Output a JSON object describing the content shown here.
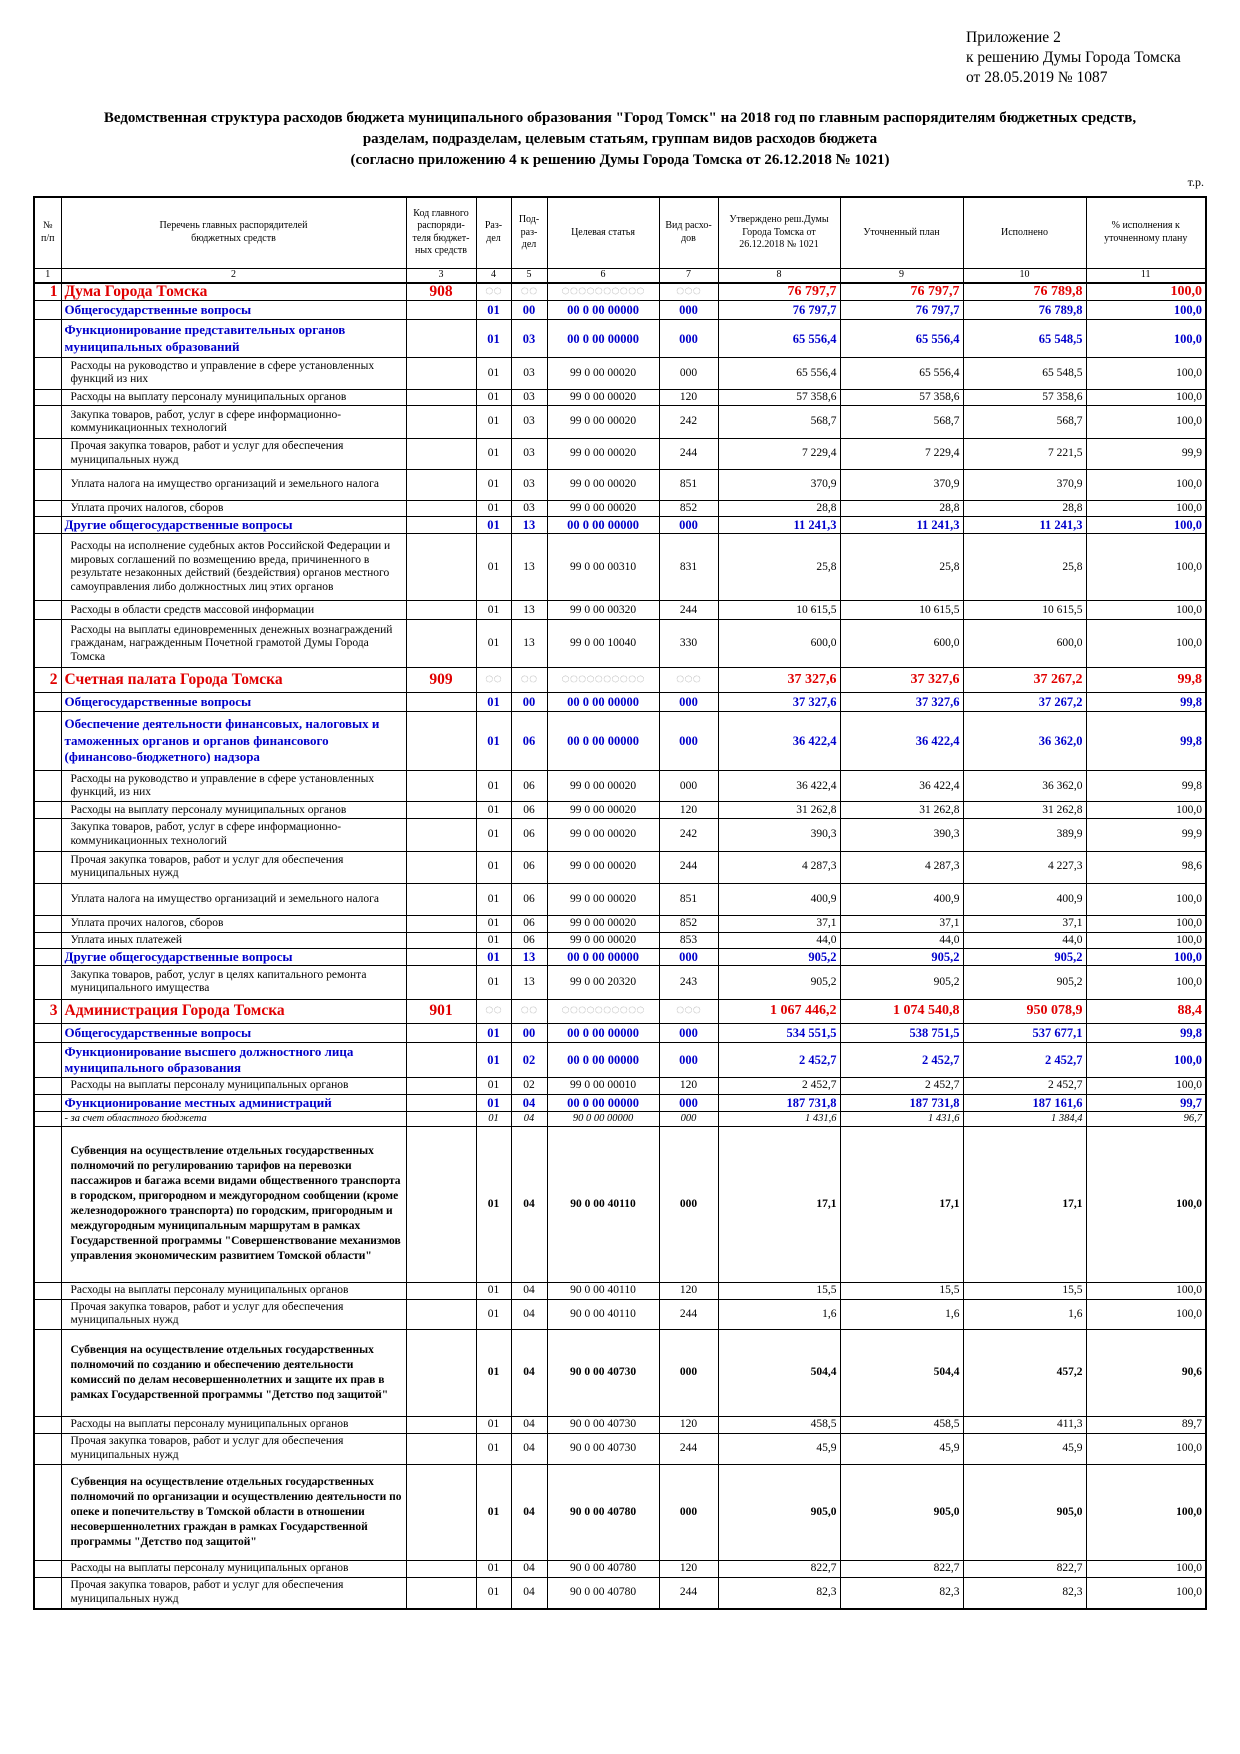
{
  "header": {
    "lines": [
      "Приложение 2",
      "к решению Думы Города Томска",
      "от 28.05.2019 № 1087"
    ]
  },
  "title": {
    "lines": [
      "Ведомственная структура расходов бюджета муниципального образования \"Город Томск\" на 2018 год по главным распорядителям бюджетных средств,",
      "разделам, подразделам, целевым статьям, группам видов расходов бюджета",
      "(согласно приложению 4 к решению Думы Города Томска от 26.12.2018 № 1021)"
    ]
  },
  "unit": "т.р.",
  "table": {
    "columns": [
      "№\nп/п",
      "Перечень главных распорядителей\nбюджетных средств",
      "Код главного\nраспоряди-\nтеля бюджет-\nных средств",
      "Раз-\nдел",
      "Под-\nраз-\nдел",
      "Целевая статья",
      "Вид расхо-\nдов",
      "Утверждено реш.Думы\nГорода Томска от\n26.12.2018 № 1021",
      "Уточненный план",
      "Исполнено",
      "% исполнения к\nуточненному плану"
    ],
    "column_numbers": [
      "1",
      "2",
      "3",
      "4",
      "5",
      "6",
      "7",
      "8",
      "9",
      "10",
      "11"
    ],
    "rows": [
      {
        "color": "#e00000",
        "bold": true,
        "cells": [
          "1",
          "Дума Города Томска",
          "908",
          "◌◌",
          "◌◌",
          "◌◌◌◌◌◌◌◌◌◌",
          "◌◌◌",
          "76 797,7",
          "76 797,7",
          "76 789,8",
          "100,0"
        ]
      },
      {
        "color": "#0000cc",
        "bold": true,
        "cells": [
          null,
          "Общегосударственные вопросы",
          null,
          "01",
          "00",
          "00 0 00 00000",
          "000",
          "76 797,7",
          "76 797,7",
          "76 789,8",
          "100,0"
        ]
      },
      {
        "color": "#0000cc",
        "bold": true,
        "cells": [
          null,
          "Функционирование представительных органов муниципальных образований",
          null,
          "01",
          "03",
          "00 0 00 00000",
          "000",
          "65 556,4",
          "65 556,4",
          "65 548,5",
          "100,0"
        ]
      },
      {
        "color": "#000000",
        "bold": false,
        "cells": [
          null,
          "Расходы на руководство и управление в сфере установленных функций из них",
          null,
          "01",
          "03",
          "99 0 00 00020",
          "000",
          "65 556,4",
          "65 556,4",
          "65 548,5",
          "100,0"
        ]
      },
      {
        "color": "#000000",
        "bold": false,
        "cells": [
          null,
          "Расходы на выплату персоналу муниципальных органов",
          null,
          "01",
          "03",
          "99 0 00 00020",
          "120",
          "57 358,6",
          "57 358,6",
          "57 358,6",
          "100,0"
        ]
      },
      {
        "color": "#000000",
        "bold": false,
        "cells": [
          null,
          "Закупка товаров, работ, услуг в сфере информационно-коммуникационных технологий",
          null,
          "01",
          "03",
          "99 0 00 00020",
          "242",
          "568,7",
          "568,7",
          "568,7",
          "100,0"
        ]
      },
      {
        "color": "#000000",
        "bold": false,
        "cells": [
          null,
          "Прочая закупка товаров, работ и услуг для обеспечения муниципальных нужд",
          null,
          "01",
          "03",
          "99 0 00 00020",
          "244",
          "7 229,4",
          "7 229,4",
          "7 221,5",
          "99,9"
        ]
      },
      {
        "color": "#000000",
        "bold": false,
        "cells": [
          null,
          "Уплата налога на имущество организаций и земельного налога",
          null,
          "01",
          "03",
          "99 0 00 00020",
          "851",
          "370,9",
          "370,9",
          "370,9",
          "100,0"
        ]
      },
      {
        "color": "#000000",
        "bold": false,
        "cells": [
          null,
          "Уплата прочих налогов, сборов",
          null,
          "01",
          "03",
          "99 0 00 00020",
          "852",
          "28,8",
          "28,8",
          "28,8",
          "100,0"
        ]
      },
      {
        "color": "#0000cc",
        "bold": true,
        "cells": [
          null,
          "Другие общегосударственные вопросы",
          null,
          "01",
          "13",
          "00 0 00 00000",
          "000",
          "11 241,3",
          "11 241,3",
          "11 241,3",
          "100,0"
        ]
      },
      {
        "color": "#000000",
        "bold": false,
        "cells": [
          null,
          "Расходы на исполнение судебных актов Российской Федерации и мировых соглашений по возмещению вреда, причиненного в результате незаконных действий (бездействия) органов местного самоуправления либо должностных лиц этих органов",
          null,
          "01",
          "13",
          "99 0 00 00310",
          "831",
          "25,8",
          "25,8",
          "25,8",
          "100,0"
        ]
      },
      {
        "color": "#000000",
        "bold": false,
        "cells": [
          null,
          "Расходы в области средств массовой информации",
          null,
          "01",
          "13",
          "99 0 00 00320",
          "244",
          "10 615,5",
          "10 615,5",
          "10 615,5",
          "100,0"
        ]
      },
      {
        "color": "#000000",
        "bold": false,
        "cells": [
          null,
          "Расходы на выплаты единовременных денежных вознаграждений гражданам, награжденным Почетной грамотой Думы Города Томска",
          null,
          "01",
          "13",
          "99 0 00 10040",
          "330",
          "600,0",
          "600,0",
          "600,0",
          "100,0"
        ]
      },
      {
        "color": "#e00000",
        "bold": true,
        "cells": [
          "2",
          "Счетная палата Города Томска",
          "909",
          "◌◌",
          "◌◌",
          "◌◌◌◌◌◌◌◌◌◌",
          "◌◌◌",
          "37 327,6",
          "37 327,6",
          "37 267,2",
          "99,8"
        ]
      },
      {
        "color": "#0000cc",
        "bold": true,
        "cells": [
          null,
          "Общегосударственные вопросы",
          null,
          "01",
          "00",
          "00 0 00 00000",
          "000",
          "37 327,6",
          "37 327,6",
          "37 267,2",
          "99,8"
        ]
      },
      {
        "color": "#0000cc",
        "bold": true,
        "cells": [
          null,
          "Обеспечение деятельности финансовых, налоговых и таможенных органов и органов финансового (финансово-бюджетного) надзора",
          null,
          "01",
          "06",
          "00 0 00 00000",
          "000",
          "36 422,4",
          "36 422,4",
          "36 362,0",
          "99,8"
        ]
      },
      {
        "color": "#000000",
        "bold": false,
        "cells": [
          null,
          "Расходы на руководство и управление в сфере установленных функций, из них",
          null,
          "01",
          "06",
          "99 0 00 00020",
          "000",
          "36 422,4",
          "36 422,4",
          "36 362,0",
          "99,8"
        ]
      },
      {
        "color": "#000000",
        "bold": false,
        "cells": [
          null,
          "Расходы на выплату персоналу муниципальных органов",
          null,
          "01",
          "06",
          "99 0 00 00020",
          "120",
          "31 262,8",
          "31 262,8",
          "31 262,8",
          "100,0"
        ]
      },
      {
        "color": "#000000",
        "bold": false,
        "cells": [
          null,
          "Закупка товаров, работ, услуг в сфере информационно-коммуникационных технологий",
          null,
          "01",
          "06",
          "99 0 00 00020",
          "242",
          "390,3",
          "390,3",
          "389,9",
          "99,9"
        ]
      },
      {
        "color": "#000000",
        "bold": false,
        "cells": [
          null,
          "Прочая закупка товаров, работ и услуг для обеспечения муниципальных нужд",
          null,
          "01",
          "06",
          "99 0 00 00020",
          "244",
          "4 287,3",
          "4 287,3",
          "4 227,3",
          "98,6"
        ]
      },
      {
        "color": "#000000",
        "bold": false,
        "cells": [
          null,
          "Уплата налога на имущество организаций и земельного налога",
          null,
          "01",
          "06",
          "99 0 00 00020",
          "851",
          "400,9",
          "400,9",
          "400,9",
          "100,0"
        ]
      },
      {
        "color": "#000000",
        "bold": false,
        "cells": [
          null,
          "Уплата прочих налогов, сборов",
          null,
          "01",
          "06",
          "99 0 00 00020",
          "852",
          "37,1",
          "37,1",
          "37,1",
          "100,0"
        ]
      },
      {
        "color": "#000000",
        "bold": false,
        "cells": [
          null,
          "Уплата иных платежей",
          null,
          "01",
          "06",
          "99 0 00 00020",
          "853",
          "44,0",
          "44,0",
          "44,0",
          "100,0"
        ]
      },
      {
        "color": "#0000cc",
        "bold": true,
        "cells": [
          null,
          "Другие общегосударственные вопросы",
          null,
          "01",
          "13",
          "00 0 00 00000",
          "000",
          "905,2",
          "905,2",
          "905,2",
          "100,0"
        ]
      },
      {
        "color": "#000000",
        "bold": false,
        "cells": [
          null,
          "Закупка товаров, работ, услуг в целях капитального ремонта муниципального имущества",
          null,
          "01",
          "13",
          "99 0 00 20320",
          "243",
          "905,2",
          "905,2",
          "905,2",
          "100,0"
        ]
      },
      {
        "color": "#e00000",
        "bold": true,
        "cells": [
          "3",
          "Администрация Города Томска",
          "901",
          "◌◌",
          "◌◌",
          "◌◌◌◌◌◌◌◌◌◌",
          "◌◌◌",
          "1 067 446,2",
          "1 074 540,8",
          "950 078,9",
          "88,4"
        ]
      },
      {
        "color": "#0000cc",
        "bold": true,
        "cells": [
          null,
          "Общегосударственные вопросы",
          null,
          "01",
          "00",
          "00 0 00 00000",
          "000",
          "534 551,5",
          "538 751,5",
          "537 677,1",
          "99,8"
        ]
      },
      {
        "color": "#0000cc",
        "bold": true,
        "cells": [
          null,
          "Функционирование высшего должностного лица муниципального образования",
          null,
          "01",
          "02",
          "00 0 00 00000",
          "000",
          "2 452,7",
          "2 452,7",
          "2 452,7",
          "100,0"
        ]
      },
      {
        "color": "#000000",
        "bold": false,
        "cells": [
          null,
          "Расходы на выплаты персоналу муниципальных органов",
          null,
          "01",
          "02",
          "99 0 00 00010",
          "120",
          "2 452,7",
          "2 452,7",
          "2 452,7",
          "100,0"
        ]
      },
      {
        "color": "#0000cc",
        "bold": true,
        "cells": [
          null,
          "Функционирование местных администраций",
          null,
          "01",
          "04",
          "00 0 00 00000",
          "000",
          "187 731,8",
          "187 731,8",
          "187 161,6",
          "99,7"
        ]
      },
      {
        "color": "#000000",
        "bold": false,
        "italic": true,
        "cells": [
          null,
          "- за счет областного бюджета",
          null,
          "01",
          "04",
          "90 0 00 00000",
          "000",
          "1 431,6",
          "1 431,6",
          "1 384,4",
          "96,7"
        ]
      },
      {
        "color": "#000000",
        "bold": true,
        "cells": [
          null,
          "Субвенция на осуществление отдельных государственных полномочий по регулированию тарифов на перевозки пассажиров и багажа всеми видами общественного транспорта в городском, пригородном и междугородном сообщении (кроме железнодорожного транспорта) по городским, пригородным и междугородным муниципальным маршрутам в рамках Государственной программы \"Совершенствование механизмов управления экономическим развитием Томской области\"",
          null,
          "01",
          "04",
          "90 0 00 40110",
          "000",
          "17,1",
          "17,1",
          "17,1",
          "100,0"
        ]
      },
      {
        "color": "#000000",
        "bold": false,
        "cells": [
          null,
          "Расходы на выплаты персоналу муниципальных органов",
          null,
          "01",
          "04",
          "90 0 00 40110",
          "120",
          "15,5",
          "15,5",
          "15,5",
          "100,0"
        ]
      },
      {
        "color": "#000000",
        "bold": false,
        "cells": [
          null,
          "Прочая закупка товаров, работ и услуг для обеспечения муниципальных нужд",
          null,
          "01",
          "04",
          "90 0 00 40110",
          "244",
          "1,6",
          "1,6",
          "1,6",
          "100,0"
        ]
      },
      {
        "color": "#000000",
        "bold": true,
        "cells": [
          null,
          "Субвенция на осуществление отдельных государственных полномочий по созданию и обеспечению деятельности комиссий по делам несовершеннолетних и защите их прав в рамках Государственной программы \"Детство под защитой\"",
          null,
          "01",
          "04",
          "90 0 00 40730",
          "000",
          "504,4",
          "504,4",
          "457,2",
          "90,6"
        ]
      },
      {
        "color": "#000000",
        "bold": false,
        "cells": [
          null,
          "Расходы на выплаты персоналу муниципальных органов",
          null,
          "01",
          "04",
          "90 0 00 40730",
          "120",
          "458,5",
          "458,5",
          "411,3",
          "89,7"
        ]
      },
      {
        "color": "#000000",
        "bold": false,
        "cells": [
          null,
          "Прочая закупка товаров, работ и услуг для обеспечения муниципальных нужд",
          null,
          "01",
          "04",
          "90 0 00 40730",
          "244",
          "45,9",
          "45,9",
          "45,9",
          "100,0"
        ]
      },
      {
        "color": "#000000",
        "bold": true,
        "cells": [
          null,
          "Субвенция на осуществление отдельных государственных полномочий по организации и осуществлению деятельности по опеке и попечительству в Томской области в отношении несовершеннолетних граждан в рамках Государственной программы \"Детство под защитой\"",
          null,
          "01",
          "04",
          "90 0 00 40780",
          "000",
          "905,0",
          "905,0",
          "905,0",
          "100,0"
        ]
      },
      {
        "color": "#000000",
        "bold": false,
        "cells": [
          null,
          "Расходы на выплаты персоналу муниципальных органов",
          null,
          "01",
          "04",
          "90 0 00 40780",
          "120",
          "822,7",
          "822,7",
          "822,7",
          "100,0"
        ]
      },
      {
        "color": "#000000",
        "bold": false,
        "cells": [
          null,
          "Прочая закупка товаров, работ и услуг для обеспечения муниципальных нужд",
          null,
          "01",
          "04",
          "90 0 00 40780",
          "244",
          "82,3",
          "82,3",
          "82,3",
          "100,0"
        ]
      }
    ]
  }
}
